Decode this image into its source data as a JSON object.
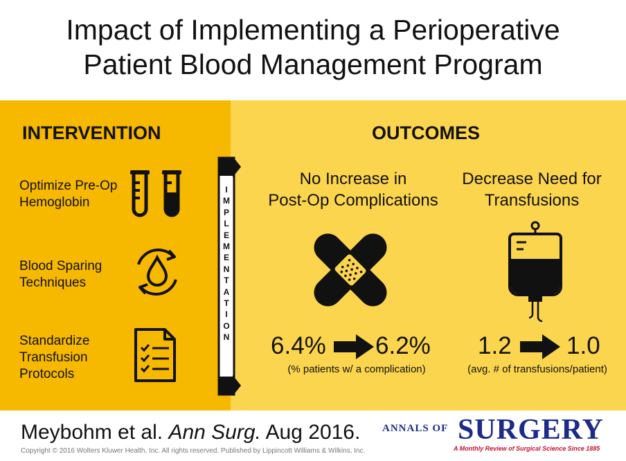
{
  "title": {
    "line1": "Impact of Implementing a Perioperative",
    "line2": "Patient Blood Management Program"
  },
  "intervention": {
    "heading": "INTERVENTION",
    "items": [
      {
        "line1": "Optimize Pre-Op",
        "line2": "Hemoglobin",
        "icon": "test-tubes-icon"
      },
      {
        "line1": "Blood Sparing",
        "line2": "Techniques",
        "icon": "blood-drop-cycle-icon"
      },
      {
        "line1": "Standardize",
        "line2": "Transfusion",
        "line3": "Protocols",
        "icon": "checklist-icon"
      }
    ]
  },
  "implementation": {
    "letters": [
      "I",
      "M",
      "P",
      "L",
      "E",
      "M",
      "E",
      "N",
      "T",
      "A",
      "T",
      "I",
      "O",
      "N"
    ]
  },
  "outcomes": {
    "heading": "OUTCOMES",
    "complications": {
      "line1": "No Increase in",
      "line2": "Post-Op Complications",
      "before": "6.4%",
      "after": "6.2%",
      "note": "(% patients w/ a complication)",
      "icon": "crossed-bandages-icon"
    },
    "transfusions": {
      "line1": "Decrease Need for",
      "line2": "Transfusions",
      "before": "1.2",
      "after": "1.0",
      "note": "(avg. # of transfusions/patient)",
      "icon": "blood-bag-icon"
    }
  },
  "footer": {
    "authors": "Meybohm et al. ",
    "journal": "Ann Surg.",
    "date": " Aug 2016.",
    "copyright": "Copyright © 2016 Wolters Kluwer Health, Inc. All rights reserved.  Published by Lippincott Williams & Wilkins, Inc.",
    "logo_annals": "ANNALS OF",
    "logo_surgery": "SURGERY",
    "logo_tagline": "A Monthly Review of Surgical Science Since 1885"
  },
  "colors": {
    "left_band": "#f7b800",
    "right_band": "#fbd54d",
    "logo_blue": "#1c2a8a",
    "logo_red": "#c8102e"
  }
}
